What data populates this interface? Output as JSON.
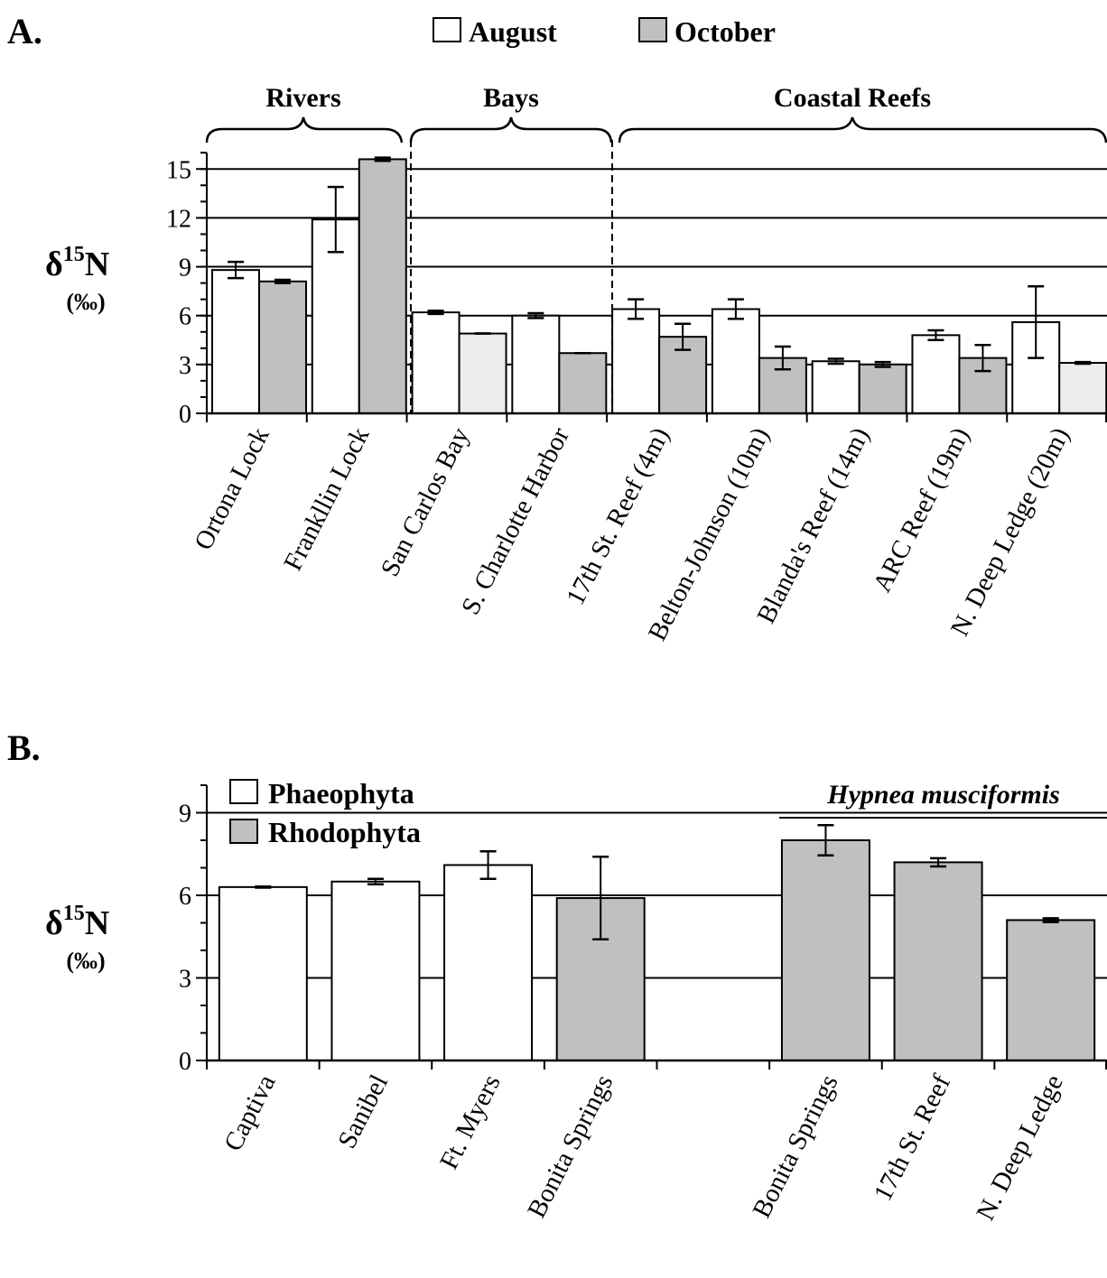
{
  "colors": {
    "august": "#ffffff",
    "october": "#c0c0c0",
    "october_light": "#ececec",
    "phaeophyta": "#ffffff",
    "rhodophyta": "#c0c0c0",
    "ink": "#000000"
  },
  "chart_data": [
    {
      "panel": "A.",
      "type": "bar",
      "ylabel": {
        "main": "δ",
        "sup": "15",
        "tail": "N",
        "unit": "(‰)"
      },
      "ylim": [
        0,
        16
      ],
      "yticks": [
        0,
        3,
        6,
        9,
        12,
        15
      ],
      "grid": true,
      "legend": {
        "position": "top-center",
        "entries": [
          "August",
          "October"
        ]
      },
      "groups": [
        {
          "label": "Rivers",
          "start": 0,
          "end": 1
        },
        {
          "label": "Bays",
          "start": 2,
          "end": 3
        },
        {
          "label": "Coastal Reefs",
          "start": 4,
          "end": 8
        }
      ],
      "categories": [
        "Ortona Lock",
        "Frankllin Lock",
        "San Carlos Bay",
        "S. Charlotte Harbor",
        "17th St. Reef  (4m)",
        "Belton-Johnson (10m)",
        "Blanda's Reef  (14m)",
        "ARC Reef  (19m)",
        "N. Deep Ledge  (20m)"
      ],
      "series": [
        {
          "name": "August",
          "values": [
            8.8,
            11.9,
            6.2,
            6.0,
            6.4,
            6.4,
            3.2,
            4.8,
            5.6
          ],
          "errors": [
            0.5,
            2.0,
            0.1,
            0.15,
            0.6,
            0.6,
            0.15,
            0.3,
            2.2
          ]
        },
        {
          "name": "October",
          "values": [
            8.1,
            15.6,
            4.9,
            3.7,
            4.7,
            3.4,
            3.0,
            3.4,
            3.1
          ],
          "errors": [
            0.1,
            0.1,
            0.0,
            0.0,
            0.8,
            0.7,
            0.15,
            0.8,
            0.05
          ]
        }
      ]
    },
    {
      "panel": "B.",
      "type": "bar",
      "ylabel": {
        "main": "δ",
        "sup": "15",
        "tail": "N",
        "unit": "(‰)"
      },
      "ylim": [
        0,
        10
      ],
      "yticks": [
        0,
        3,
        6,
        9
      ],
      "grid": true,
      "legend": {
        "position": "top-left",
        "entries": [
          "Phaeophyta",
          "Rhodophyta"
        ]
      },
      "annotation": "Hypnea musciformis",
      "categories": [
        "Captiva",
        "Sanibel",
        "Ft. Myers",
        "Bonita Springs",
        "",
        "Bonita Springs",
        "17th St. Reef",
        "N. Deep Ledge"
      ],
      "bars": [
        {
          "value": 6.3,
          "error": 0.02,
          "division": "Phaeophyta"
        },
        {
          "value": 6.5,
          "error": 0.1,
          "division": "Phaeophyta"
        },
        {
          "value": 7.1,
          "error": 0.5,
          "division": "Phaeophyta"
        },
        {
          "value": 5.9,
          "error": 1.5,
          "division": "Rhodophyta"
        },
        null,
        {
          "value": 8.0,
          "error": 0.55,
          "division": "Rhodophyta"
        },
        {
          "value": 7.2,
          "error": 0.15,
          "division": "Rhodophyta"
        },
        {
          "value": 5.1,
          "error": 0.07,
          "division": "Rhodophyta"
        }
      ]
    }
  ]
}
